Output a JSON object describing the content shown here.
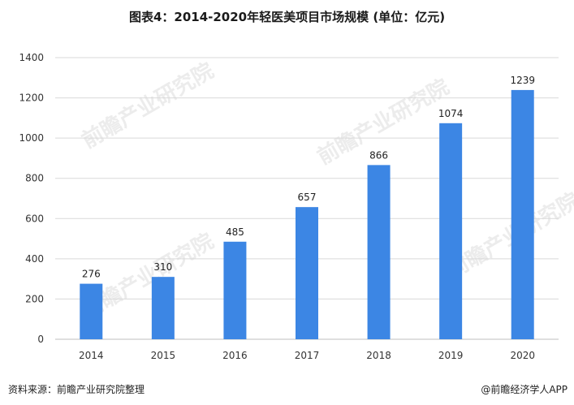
{
  "title": "图表4：2014-2020年轻医美项目市场规模 (单位：亿元)",
  "source": "资料来源：前瞻产业研究院整理",
  "brand": "@前瞻经济学人APP",
  "watermark": "前瞻产业研究院",
  "colors": {
    "bar": "#3c86e4",
    "grid": "#d9d9d9",
    "axis": "#bfbfbf"
  },
  "chart_data": {
    "type": "bar",
    "title": "图表4：2014-2020年轻医美项目市场规模 (单位：亿元)",
    "categories": [
      "2014",
      "2015",
      "2016",
      "2017",
      "2018",
      "2019",
      "2020"
    ],
    "values": [
      276,
      310,
      485,
      657,
      866,
      1074,
      1239
    ],
    "data_labels": [
      "276",
      "310",
      "485",
      "657",
      "866",
      "1074",
      "1239"
    ],
    "yticks": [
      "0",
      "200",
      "400",
      "600",
      "800",
      "1000",
      "1200",
      "1400"
    ],
    "ylim": [
      0,
      1400
    ],
    "xlabel": "",
    "ylabel": "",
    "grid": true,
    "legend": "none"
  }
}
